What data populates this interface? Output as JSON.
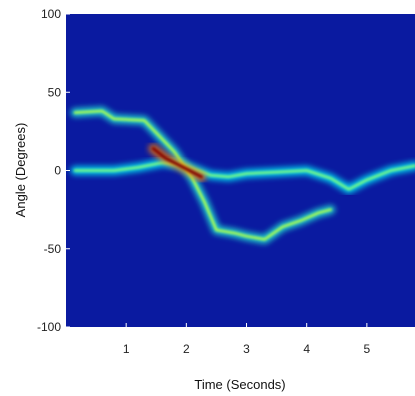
{
  "chart_data": {
    "type": "heatmap",
    "title": "",
    "xlabel": "Time (Seconds)",
    "ylabel": "Angle (Degrees)",
    "xlim": [
      0,
      5.8
    ],
    "ylim": [
      -100,
      100
    ],
    "x_ticks": [
      1,
      2,
      3,
      4,
      5
    ],
    "y_ticks": [
      100,
      50,
      0,
      -50,
      -100
    ],
    "colormap": "jet",
    "background_color": "#0a1aa0",
    "tracks": [
      {
        "points": [
          [
            0.15,
            0
          ],
          [
            0.8,
            0
          ],
          [
            1.2,
            2
          ],
          [
            1.6,
            5
          ],
          [
            2.0,
            3
          ],
          [
            2.4,
            -3
          ],
          [
            2.7,
            -4
          ],
          [
            3.0,
            -2
          ],
          [
            3.5,
            -1
          ],
          [
            4.0,
            0
          ],
          [
            4.4,
            -5
          ],
          [
            4.7,
            -12
          ],
          [
            5.0,
            -6
          ],
          [
            5.4,
            0
          ],
          [
            5.8,
            3
          ]
        ],
        "intensity": 0.5
      },
      {
        "points": [
          [
            0.15,
            37
          ],
          [
            0.6,
            38
          ],
          [
            0.8,
            33
          ],
          [
            1.3,
            32
          ],
          [
            1.5,
            24
          ],
          [
            1.8,
            12
          ],
          [
            2.1,
            -5
          ],
          [
            2.3,
            -20
          ],
          [
            2.5,
            -38
          ],
          [
            2.8,
            -40
          ],
          [
            3.0,
            -42
          ],
          [
            3.3,
            -44
          ],
          [
            3.6,
            -36
          ],
          [
            3.9,
            -32
          ],
          [
            4.2,
            -27
          ],
          [
            4.4,
            -25
          ]
        ],
        "intensity": 0.55
      },
      {
        "points": [
          [
            1.45,
            14
          ],
          [
            1.65,
            8
          ],
          [
            1.85,
            4
          ],
          [
            2.05,
            0
          ],
          [
            2.25,
            -4
          ]
        ],
        "intensity": 1.0
      }
    ]
  },
  "colors": {
    "low": "#0a1aa0",
    "mid": "#40d0ff",
    "high": "#ff2000"
  }
}
